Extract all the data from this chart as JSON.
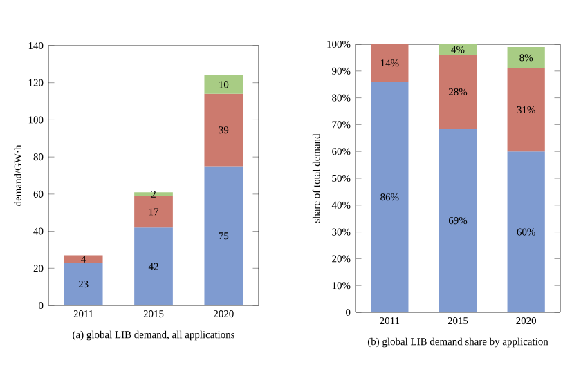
{
  "chart_data": [
    {
      "type": "bar",
      "stacked": true,
      "xlabel": "(a) global LIB demand, all applications",
      "ylabel": "demand/GW·h",
      "categories": [
        "2011",
        "2015",
        "2020"
      ],
      "ylim": [
        0,
        140
      ],
      "yticks": [
        0,
        20,
        40,
        60,
        80,
        100,
        120,
        140
      ],
      "data_labels": true,
      "series": [
        {
          "color": "#7f9bd0",
          "values": [
            23,
            42,
            75
          ]
        },
        {
          "color": "#cc7a6e",
          "values": [
            4,
            17,
            39
          ]
        },
        {
          "color": "#a8cc84",
          "values": [
            null,
            2,
            10
          ]
        }
      ]
    },
    {
      "type": "bar",
      "stacked": true,
      "xlabel": "(b) global LIB demand share by application",
      "ylabel": "share of total demand",
      "categories": [
        "2011",
        "2015",
        "2020"
      ],
      "ylim": [
        0,
        100
      ],
      "yticks": [
        0,
        {
          "value": 10,
          "label": "10%"
        },
        {
          "value": 20,
          "label": "20%"
        },
        {
          "value": 30,
          "label": "30%"
        },
        {
          "value": 40,
          "label": "40%"
        },
        {
          "value": 50,
          "label": "50%"
        },
        {
          "value": 60,
          "label": "60%"
        },
        {
          "value": 70,
          "label": "70%"
        },
        {
          "value": 80,
          "label": "80%"
        },
        {
          "value": 90,
          "label": "90%"
        },
        {
          "value": 100,
          "label": "100%"
        }
      ],
      "series": [
        {
          "color": "#7f9bd0",
          "values": [
            86,
            68.5,
            60
          ],
          "value_labels": [
            "86%",
            "69%",
            "60%"
          ]
        },
        {
          "color": "#cc7a6e",
          "values": [
            14,
            27.5,
            31
          ],
          "value_labels": [
            "14%",
            "28%",
            "31%"
          ]
        },
        {
          "color": "#a8cc84",
          "values": [
            null,
            4,
            8
          ],
          "value_labels": [
            null,
            "4%",
            "8%"
          ]
        }
      ]
    }
  ]
}
